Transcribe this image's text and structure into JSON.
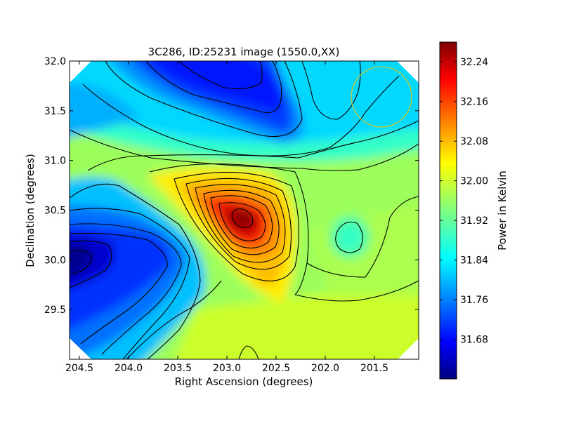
{
  "chart_data": {
    "type": "heatmap",
    "title": "3C286, ID:25231 image (1550.0,XX)",
    "xlabel": "Right Ascension (degrees)",
    "ylabel": "Declination (degrees)",
    "colorbar_label": "Power in Kelvin",
    "colormap": "jet",
    "xlim": [
      204.6,
      201.05
    ],
    "ylim": [
      29.0,
      32.0
    ],
    "x_ticks": [
      204.5,
      204.0,
      203.5,
      203.0,
      202.5,
      202.0,
      201.5
    ],
    "x_tick_labels": [
      "204.5",
      "204.0",
      "203.5",
      "203.0",
      "202.5",
      "202.0",
      "201.5"
    ],
    "y_ticks": [
      29.5,
      30.0,
      30.5,
      31.0,
      31.5,
      32.0
    ],
    "y_tick_labels": [
      "29.5",
      "30.0",
      "30.5",
      "31.0",
      "31.5",
      "32.0"
    ],
    "colorbar_range": [
      31.6,
      32.28
    ],
    "colorbar_ticks": [
      31.68,
      31.76,
      31.84,
      31.92,
      32.0,
      32.08,
      32.16,
      32.24
    ],
    "colorbar_tick_labels": [
      "31.68",
      "31.76",
      "31.84",
      "31.92",
      "32.00",
      "32.08",
      "32.16",
      "32.24"
    ],
    "features": [
      {
        "type": "peak",
        "ra": 202.75,
        "dec": 30.45,
        "value": 32.26
      },
      {
        "type": "minimum",
        "ra": 204.35,
        "dec": 30.05,
        "value": 31.6
      },
      {
        "type": "minimum",
        "ra": 203.05,
        "dec": 31.75,
        "value": 31.67
      },
      {
        "type": "local-minimum",
        "ra": 201.85,
        "dec": 30.25,
        "value": 31.88
      }
    ],
    "beam_circle": {
      "ra": 201.4,
      "dec": 31.65,
      "radius_deg": 0.3,
      "color": "#c8c832"
    }
  }
}
